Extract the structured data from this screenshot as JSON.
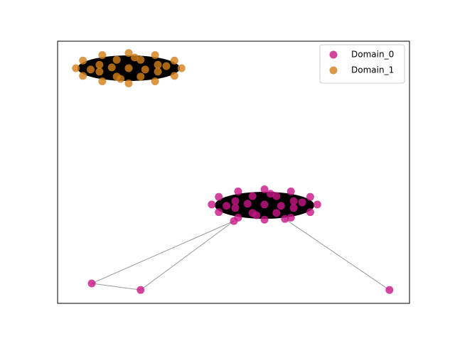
{
  "chart_data": {
    "type": "network",
    "xlim": [
      0,
      100
    ],
    "ylim": [
      0,
      100
    ],
    "legend": "upper right",
    "series": [
      {
        "name": "Domain_0",
        "color": "#c71585",
        "x": [
          73.8,
          71.8,
          66.3,
          58.8,
          51.3,
          45.8,
          43.8,
          45.8,
          51.3,
          58.8,
          66.3,
          71.8,
          67.1,
          62.2,
          55.4,
          50.5,
          50.5,
          55.4,
          62.2,
          67.1,
          58.8,
          54,
          63.5,
          69.5,
          48,
          60.5,
          56.5,
          50.1,
          64.6,
          9.7,
          23.6,
          94.3
        ],
        "y": [
          37.7,
          40.6,
          42.7,
          43.5,
          42.7,
          40.6,
          37.7,
          34.8,
          32.7,
          31.9,
          32.7,
          34.8,
          39.0,
          40.9,
          40.9,
          39.0,
          36.4,
          34.5,
          34.5,
          36.4,
          37.7,
          38,
          37.2,
          38.5,
          37.2,
          41.8,
          33.6,
          31.4,
          32.2,
          7.6,
          5.1,
          5.1
        ],
        "edges": [
          [
            29,
            30
          ],
          [
            29,
            27
          ],
          [
            30,
            27
          ],
          [
            31,
            28
          ]
        ]
      },
      {
        "name": "Domain_1",
        "color": "#d2801a",
        "x": [
          35.2,
          33.2,
          27.7,
          20.2,
          12.7,
          7.2,
          5.2,
          7.2,
          12.7,
          20.2,
          27.7,
          33.2,
          28.5,
          23.6,
          16.8,
          11.9,
          11.9,
          16.8,
          23.6,
          28.5,
          20.2,
          15.4,
          24.9,
          30.9,
          9.4,
          21.9,
          17.9
        ],
        "y": [
          89.7,
          92.6,
          94.7,
          95.5,
          94.7,
          92.6,
          89.7,
          86.8,
          84.7,
          83.9,
          84.7,
          86.8,
          91.0,
          92.9,
          92.9,
          91.0,
          88.4,
          86.5,
          86.5,
          88.4,
          89.7,
          90.0,
          89.2,
          90.5,
          89.2,
          93.8,
          85.6
        ],
        "edges": []
      }
    ]
  }
}
